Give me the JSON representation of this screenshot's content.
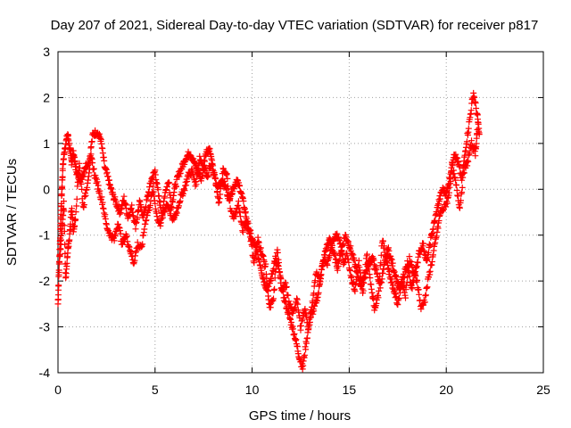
{
  "chart_data": {
    "type": "scatter",
    "title": "Day 207 of 2021, Sidereal Day-to-day VTEC variation (SDTVAR) for receiver p817",
    "xlabel": "GPS time / hours",
    "ylabel": "SDTVAR / TECUs",
    "xlim": [
      0,
      25
    ],
    "ylim": [
      -4,
      3
    ],
    "xticks": [
      "0",
      "5",
      "10",
      "15",
      "20",
      "25"
    ],
    "yticks": [
      "-4",
      "-3",
      "-2",
      "-1",
      "0",
      "1",
      "2",
      "3"
    ],
    "grid": true,
    "marker": "plus",
    "color": "#ff0000",
    "trace": [
      [
        0.0,
        -2.5
      ],
      [
        0.05,
        -1.8
      ],
      [
        0.1,
        -1.2
      ],
      [
        0.15,
        -0.6
      ],
      [
        0.2,
        0.0
      ],
      [
        0.25,
        0.5
      ],
      [
        0.35,
        0.9
      ],
      [
        0.5,
        1.2
      ],
      [
        0.6,
        0.9
      ],
      [
        0.7,
        0.6
      ],
      [
        0.8,
        0.8
      ],
      [
        0.9,
        0.5
      ],
      [
        1.0,
        0.3
      ],
      [
        1.2,
        0.2
      ],
      [
        1.4,
        0.5
      ],
      [
        1.6,
        0.6
      ],
      [
        1.8,
        1.2
      ],
      [
        2.0,
        1.25
      ],
      [
        2.2,
        1.1
      ],
      [
        2.4,
        0.5
      ],
      [
        2.6,
        0.2
      ],
      [
        2.8,
        -0.1
      ],
      [
        3.0,
        -0.3
      ],
      [
        3.2,
        -0.5
      ],
      [
        3.4,
        -0.2
      ],
      [
        3.6,
        -0.6
      ],
      [
        3.8,
        -0.4
      ],
      [
        4.0,
        -0.8
      ],
      [
        4.2,
        -0.3
      ],
      [
        4.4,
        -0.6
      ],
      [
        4.6,
        -0.2
      ],
      [
        4.8,
        0.2
      ],
      [
        5.0,
        0.4
      ],
      [
        5.2,
        -0.2
      ],
      [
        5.4,
        -0.6
      ],
      [
        5.6,
        -0.3
      ],
      [
        5.8,
        -0.5
      ],
      [
        6.0,
        0.0
      ],
      [
        6.2,
        0.3
      ],
      [
        6.4,
        0.5
      ],
      [
        6.6,
        0.7
      ],
      [
        6.8,
        0.8
      ],
      [
        7.0,
        0.6
      ],
      [
        7.2,
        0.4
      ],
      [
        7.4,
        0.2
      ],
      [
        7.6,
        0.8
      ],
      [
        7.8,
        0.9
      ],
      [
        8.0,
        0.4
      ],
      [
        8.2,
        0.0
      ],
      [
        8.4,
        0.2
      ],
      [
        8.6,
        0.1
      ],
      [
        8.8,
        -0.2
      ],
      [
        9.0,
        0.0
      ],
      [
        9.2,
        0.2
      ],
      [
        9.4,
        0.0
      ],
      [
        9.6,
        -0.4
      ],
      [
        9.8,
        -0.8
      ],
      [
        10.0,
        -1.1
      ],
      [
        10.2,
        -1.3
      ],
      [
        10.4,
        -1.6
      ],
      [
        10.6,
        -2.0
      ],
      [
        10.8,
        -2.2
      ],
      [
        11.0,
        -1.9
      ],
      [
        11.2,
        -1.5
      ],
      [
        11.4,
        -1.8
      ],
      [
        11.6,
        -2.3
      ],
      [
        11.8,
        -2.6
      ],
      [
        12.0,
        -2.9
      ],
      [
        12.2,
        -3.2
      ],
      [
        12.4,
        -3.6
      ],
      [
        12.6,
        -3.9
      ],
      [
        12.8,
        -3.3
      ],
      [
        13.0,
        -2.8
      ],
      [
        13.2,
        -2.6
      ],
      [
        13.4,
        -2.3
      ],
      [
        13.6,
        -1.7
      ],
      [
        13.8,
        -1.3
      ],
      [
        14.0,
        -1.1
      ],
      [
        14.2,
        -1.4
      ],
      [
        14.4,
        -1.7
      ],
      [
        14.6,
        -1.3
      ],
      [
        14.8,
        -1.0
      ],
      [
        15.0,
        -1.2
      ],
      [
        15.2,
        -1.5
      ],
      [
        15.4,
        -1.8
      ],
      [
        15.6,
        -2.1
      ],
      [
        15.8,
        -1.9
      ],
      [
        16.0,
        -1.6
      ],
      [
        16.2,
        -1.5
      ],
      [
        16.4,
        -1.8
      ],
      [
        16.6,
        -2.1
      ],
      [
        16.8,
        -1.7
      ],
      [
        17.0,
        -1.3
      ],
      [
        17.2,
        -1.6
      ],
      [
        17.4,
        -1.9
      ],
      [
        17.6,
        -2.2
      ],
      [
        17.8,
        -1.9
      ],
      [
        18.0,
        -1.6
      ],
      [
        18.2,
        -2.2
      ],
      [
        18.4,
        -1.8
      ],
      [
        18.6,
        -1.4
      ],
      [
        18.8,
        -1.2
      ],
      [
        19.0,
        -1.6
      ],
      [
        19.2,
        -1.1
      ],
      [
        19.4,
        -0.7
      ],
      [
        19.6,
        -0.3
      ],
      [
        19.8,
        0.0
      ],
      [
        20.0,
        -0.1
      ],
      [
        20.2,
        0.3
      ],
      [
        20.4,
        0.8
      ],
      [
        20.6,
        0.6
      ],
      [
        20.8,
        0.2
      ],
      [
        21.0,
        0.9
      ],
      [
        21.2,
        1.5
      ],
      [
        21.4,
        2.1
      ],
      [
        21.6,
        1.6
      ],
      [
        21.7,
        1.2
      ]
    ],
    "cloud": [
      [
        0.1,
        -1.5
      ],
      [
        0.2,
        -0.9
      ],
      [
        0.3,
        -0.3
      ],
      [
        0.4,
        -2.0
      ],
      [
        0.5,
        -1.4
      ],
      [
        0.6,
        -1.0
      ],
      [
        0.7,
        -0.4
      ],
      [
        0.8,
        -0.9
      ],
      [
        0.9,
        -0.6
      ],
      [
        1.1,
        0.6
      ],
      [
        1.3,
        -0.4
      ],
      [
        1.5,
        0.1
      ],
      [
        1.7,
        0.7
      ],
      [
        1.9,
        0.3
      ],
      [
        2.1,
        0.0
      ],
      [
        2.3,
        -0.3
      ],
      [
        2.5,
        -0.8
      ],
      [
        2.7,
        -1.0
      ],
      [
        2.9,
        -1.1
      ],
      [
        3.1,
        -0.7
      ],
      [
        3.3,
        -1.2
      ],
      [
        3.5,
        -1.0
      ],
      [
        3.7,
        -1.3
      ],
      [
        3.9,
        -1.6
      ],
      [
        4.1,
        -1.2
      ],
      [
        4.3,
        -1.3
      ],
      [
        4.5,
        -0.7
      ],
      [
        4.7,
        -0.4
      ],
      [
        4.9,
        0.0
      ],
      [
        5.1,
        -0.6
      ],
      [
        5.3,
        -0.8
      ],
      [
        5.5,
        -0.1
      ],
      [
        5.7,
        0.2
      ],
      [
        5.9,
        -0.7
      ],
      [
        6.1,
        -0.5
      ],
      [
        6.3,
        -0.2
      ],
      [
        6.5,
        0.0
      ],
      [
        6.7,
        0.3
      ],
      [
        6.9,
        0.4
      ],
      [
        7.1,
        0.1
      ],
      [
        7.3,
        0.7
      ],
      [
        7.5,
        0.5
      ],
      [
        7.7,
        0.3
      ],
      [
        7.9,
        0.6
      ],
      [
        8.1,
        0.2
      ],
      [
        8.3,
        -0.3
      ],
      [
        8.5,
        0.4
      ],
      [
        8.7,
        0.3
      ],
      [
        8.9,
        -0.5
      ],
      [
        9.1,
        -0.6
      ],
      [
        9.3,
        -0.3
      ],
      [
        9.5,
        -0.9
      ],
      [
        9.7,
        -0.7
      ],
      [
        9.9,
        -1.0
      ],
      [
        10.1,
        -1.6
      ],
      [
        10.3,
        -1.1
      ],
      [
        10.5,
        -1.4
      ],
      [
        10.7,
        -1.7
      ],
      [
        10.9,
        -2.6
      ],
      [
        11.1,
        -2.4
      ],
      [
        11.3,
        -1.3
      ],
      [
        11.5,
        -2.2
      ],
      [
        11.7,
        -2.0
      ],
      [
        11.9,
        -2.5
      ],
      [
        12.1,
        -2.7
      ],
      [
        12.3,
        -2.4
      ],
      [
        12.5,
        -3.0
      ],
      [
        12.7,
        -2.6
      ],
      [
        12.9,
        -3.0
      ],
      [
        13.1,
        -2.5
      ],
      [
        13.3,
        -1.8
      ],
      [
        13.5,
        -2.0
      ],
      [
        13.7,
        -1.5
      ],
      [
        13.9,
        -1.6
      ],
      [
        14.1,
        -1.2
      ],
      [
        14.3,
        -1.0
      ],
      [
        14.5,
        -1.1
      ],
      [
        14.7,
        -1.6
      ],
      [
        14.9,
        -1.4
      ],
      [
        15.1,
        -1.9
      ],
      [
        15.3,
        -2.2
      ],
      [
        15.5,
        -1.6
      ],
      [
        15.7,
        -2.3
      ],
      [
        15.9,
        -1.4
      ],
      [
        16.1,
        -2.0
      ],
      [
        16.3,
        -2.6
      ],
      [
        16.5,
        -2.3
      ],
      [
        16.7,
        -1.1
      ],
      [
        16.9,
        -1.5
      ],
      [
        17.1,
        -1.9
      ],
      [
        17.3,
        -2.2
      ],
      [
        17.5,
        -2.5
      ],
      [
        17.7,
        -2.0
      ],
      [
        17.9,
        -2.3
      ],
      [
        18.1,
        -1.5
      ],
      [
        18.3,
        -1.8
      ],
      [
        18.5,
        -2.0
      ],
      [
        18.7,
        -2.6
      ],
      [
        18.9,
        -2.4
      ],
      [
        19.1,
        -1.9
      ],
      [
        19.3,
        -1.5
      ],
      [
        19.5,
        -1.0
      ],
      [
        19.7,
        -0.5
      ],
      [
        19.9,
        -0.4
      ],
      [
        20.1,
        -0.2
      ],
      [
        20.3,
        0.5
      ],
      [
        20.5,
        0.1
      ],
      [
        20.7,
        -0.4
      ],
      [
        20.9,
        0.4
      ],
      [
        21.1,
        0.6
      ],
      [
        21.3,
        1.0
      ],
      [
        21.5,
        0.8
      ],
      [
        21.6,
        1.3
      ]
    ]
  }
}
